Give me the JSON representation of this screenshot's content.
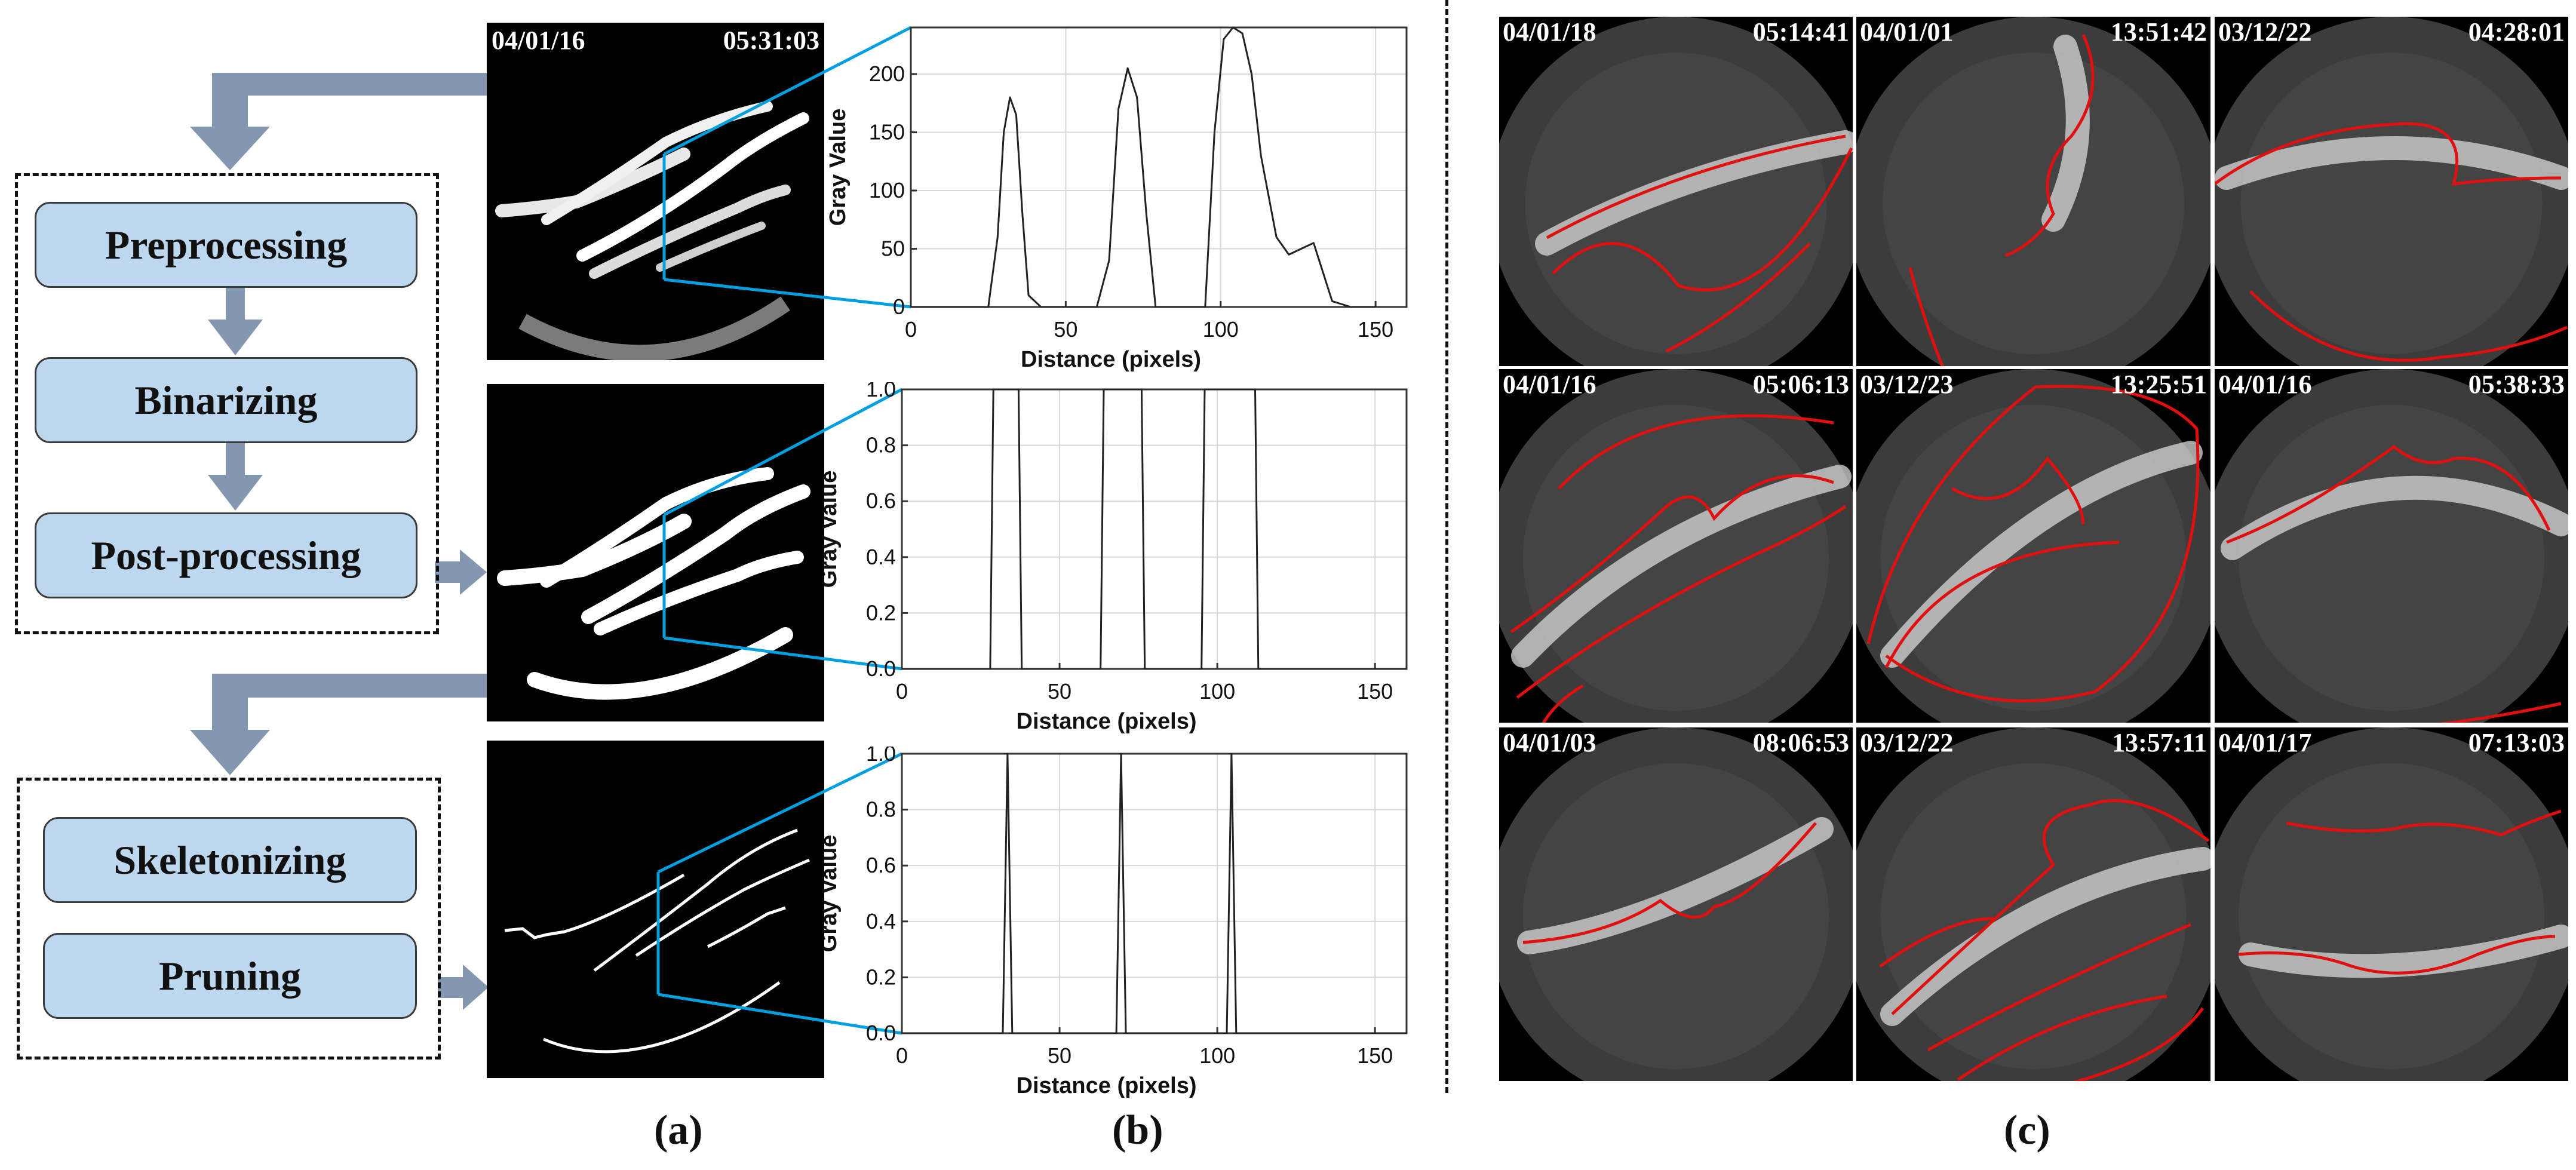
{
  "panel_a": {
    "steps_group1": [
      "Preprocessing",
      "Binarizing",
      "Post-processing"
    ],
    "steps_group2": [
      "Skeletonizing",
      "Pruning"
    ],
    "timestamp": {
      "date": "04/01/16",
      "time": "05:31:03"
    },
    "caption": "(a)"
  },
  "panel_b": {
    "caption": "(b)"
  },
  "panel_c": {
    "caption": "(c)",
    "images": [
      {
        "date": "04/01/18",
        "time": "05:14:41"
      },
      {
        "date": "04/01/01",
        "time": "13:51:42"
      },
      {
        "date": "03/12/22",
        "time": "04:28:01"
      },
      {
        "date": "04/01/16",
        "time": "05:06:13"
      },
      {
        "date": "03/12/23",
        "time": "13:25:51"
      },
      {
        "date": "04/01/16",
        "time": "05:38:33"
      },
      {
        "date": "04/01/03",
        "time": "08:06:53"
      },
      {
        "date": "03/12/22",
        "time": "13:57:11"
      },
      {
        "date": "04/01/17",
        "time": "07:13:03"
      }
    ]
  },
  "colors": {
    "arrow": "#8497b0",
    "box": "#bdd7ee",
    "zoom": "#00a0e0",
    "curve": "#e01010"
  },
  "chart_data": [
    {
      "type": "line",
      "title": "",
      "xlabel": "Distance (pixels)",
      "ylabel": "Gray Value",
      "xlim": [
        0,
        160
      ],
      "ylim": [
        0,
        240
      ],
      "xticks": [
        "0",
        "50",
        "100",
        "150"
      ],
      "yticks": [
        "0",
        "50",
        "100",
        "150",
        "200"
      ],
      "x": [
        0,
        25,
        28,
        30,
        32,
        34,
        36,
        38,
        42,
        60,
        64,
        67,
        70,
        73,
        76,
        79,
        95,
        98,
        101,
        104,
        107,
        110,
        113,
        118,
        122,
        126,
        130,
        133,
        136,
        142,
        150
      ],
      "series": [
        {
          "name": "Gray Value",
          "values": [
            0,
            0,
            60,
            150,
            180,
            165,
            80,
            10,
            0,
            0,
            40,
            170,
            205,
            180,
            80,
            0,
            0,
            150,
            230,
            240,
            235,
            200,
            130,
            60,
            45,
            50,
            55,
            30,
            5,
            0,
            0
          ]
        }
      ]
    },
    {
      "type": "line",
      "title": "",
      "xlabel": "Distance (pixels)",
      "ylabel": "Gray Value",
      "xlim": [
        0,
        160
      ],
      "ylim": [
        0,
        1
      ],
      "xticks": [
        "0",
        "50",
        "100",
        "150"
      ],
      "yticks": [
        "0.0",
        "0.2",
        "0.4",
        "0.6",
        "0.8",
        "1.0"
      ],
      "x": [
        0,
        28,
        29,
        37,
        38,
        63,
        64,
        76,
        77,
        95,
        96,
        112,
        113,
        160
      ],
      "series": [
        {
          "name": "Gray Value",
          "values": [
            0,
            0,
            1,
            1,
            0,
            0,
            1,
            1,
            0,
            0,
            1,
            1,
            0,
            0
          ]
        }
      ]
    },
    {
      "type": "line",
      "title": "",
      "xlabel": "Distance (pixels)",
      "ylabel": "Gray Value",
      "xlim": [
        0,
        160
      ],
      "ylim": [
        0,
        1
      ],
      "xticks": [
        "0",
        "50",
        "100",
        "150"
      ],
      "yticks": [
        "0.0",
        "0.2",
        "0.4",
        "0.6",
        "0.8",
        "1.0"
      ],
      "x": [
        0,
        32,
        33.5,
        35,
        68,
        69.5,
        71,
        103,
        104.5,
        106,
        160
      ],
      "series": [
        {
          "name": "Gray Value",
          "values": [
            0,
            0,
            1,
            0,
            0,
            1,
            0,
            0,
            1,
            0,
            0
          ]
        }
      ]
    }
  ]
}
